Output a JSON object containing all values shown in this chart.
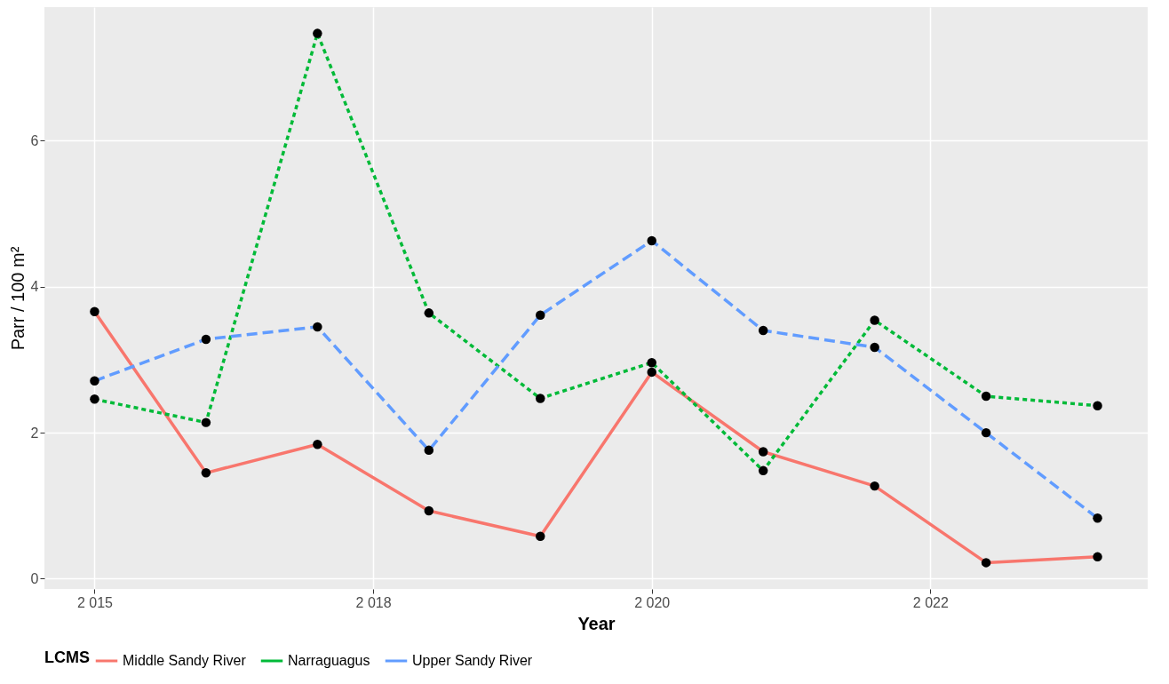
{
  "chart_data": {
    "type": "line",
    "xlabel": "Year",
    "ylabel": "Parr / 100 m²",
    "legend_title": "LCMS",
    "x": [
      2015,
      2016,
      2017,
      2018,
      2019,
      2020,
      2021,
      2022,
      2023,
      2024
    ],
    "xlim": [
      2014.55,
      2024.45
    ],
    "xticks": [
      {
        "value": 2015,
        "label": "2 015"
      },
      {
        "value": 2017.5,
        "label": "2 018"
      },
      {
        "value": 2020,
        "label": "2 020"
      },
      {
        "value": 2022.5,
        "label": "2 022"
      }
    ],
    "ylim": [
      -0.14,
      7.83
    ],
    "yticks": [
      0,
      2,
      4,
      6
    ],
    "grid": true,
    "legend": "bottom",
    "marker": "circle",
    "series": [
      {
        "name": "Middle Sandy River",
        "color": "#f8766d",
        "line_style": "solid",
        "values": [
          3.66,
          1.45,
          1.84,
          0.93,
          0.58,
          2.83,
          1.74,
          1.27,
          0.22,
          0.3
        ]
      },
      {
        "name": "Narraguagus",
        "color": "#00ba38",
        "line_style": "dotted",
        "values": [
          2.46,
          2.14,
          7.47,
          3.64,
          2.47,
          2.96,
          1.48,
          3.54,
          2.5,
          2.37
        ]
      },
      {
        "name": "Upper Sandy River",
        "color": "#619cff",
        "line_style": "dashed",
        "values": [
          2.71,
          3.28,
          3.45,
          1.76,
          3.61,
          4.63,
          3.4,
          3.17,
          2.0,
          0.83
        ]
      }
    ]
  }
}
